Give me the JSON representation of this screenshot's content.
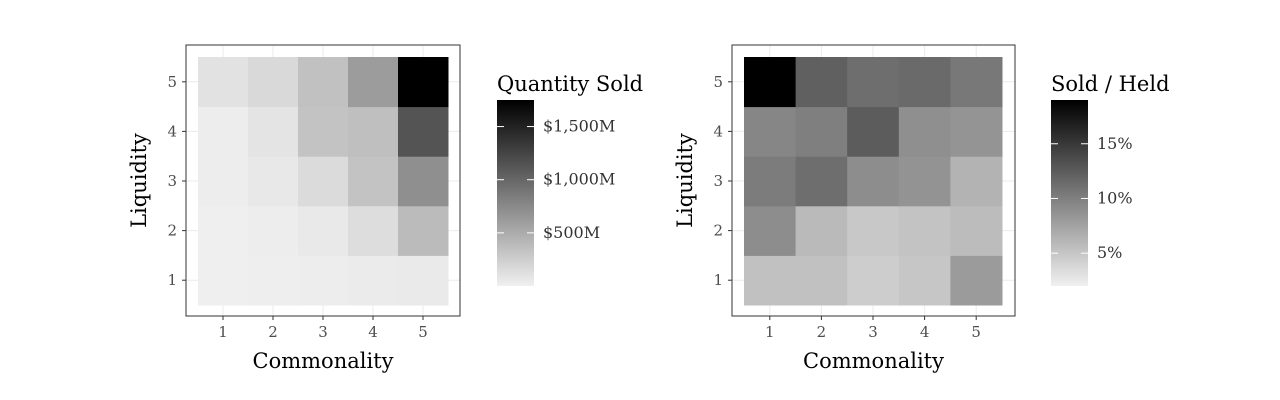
{
  "chart_data": [
    {
      "type": "heatmap",
      "xlabel": "Commonality",
      "ylabel": "Liquidity",
      "x_ticks": [
        "1",
        "2",
        "3",
        "4",
        "5"
      ],
      "y_ticks": [
        "1",
        "2",
        "3",
        "4",
        "5"
      ],
      "legend_title": "Quantity Sold",
      "legend_ticks": [
        {
          "value": 500,
          "label": "$500M"
        },
        {
          "value": 1000,
          "label": "$1,000M"
        },
        {
          "value": 1500,
          "label": "$1,500M"
        }
      ],
      "legend_range": [
        0,
        1750
      ],
      "unit": "millions of dollars",
      "values_by_liquidity": [
        [
          10,
          15,
          25,
          40,
          45
        ],
        [
          10,
          20,
          50,
          140,
          390
        ],
        [
          25,
          60,
          150,
          330,
          710
        ],
        [
          20,
          90,
          330,
          360,
          1140
        ],
        [
          100,
          170,
          340,
          610,
          1750
        ]
      ],
      "grid": true,
      "legend_position": "right"
    },
    {
      "type": "heatmap",
      "xlabel": "Commonality",
      "ylabel": "Liquidity",
      "x_ticks": [
        "1",
        "2",
        "3",
        "4",
        "5"
      ],
      "y_ticks": [
        "1",
        "2",
        "3",
        "4",
        "5"
      ],
      "legend_title": "Sold / Held",
      "legend_ticks": [
        {
          "value": 5,
          "label": "5%"
        },
        {
          "value": 10,
          "label": "10%"
        },
        {
          "value": 15,
          "label": "15%"
        }
      ],
      "legend_range": [
        2,
        19
      ],
      "unit": "percent",
      "values_by_liquidity": [
        [
          5.3,
          5.3,
          4.5,
          5.0,
          8.0
        ],
        [
          9.0,
          5.8,
          4.8,
          5.2,
          5.7
        ],
        [
          10.2,
          11.2,
          9.0,
          8.6,
          6.3
        ],
        [
          9.5,
          10.0,
          12.5,
          8.9,
          8.5
        ],
        [
          19.0,
          12.2,
          11.2,
          11.5,
          10.5
        ]
      ],
      "grid": true,
      "legend_position": "right"
    }
  ],
  "colors": {
    "scale_low": "#f0f0f0",
    "scale_high": "#000000",
    "panel_border": "#333333",
    "grid": "#ebebeb"
  }
}
